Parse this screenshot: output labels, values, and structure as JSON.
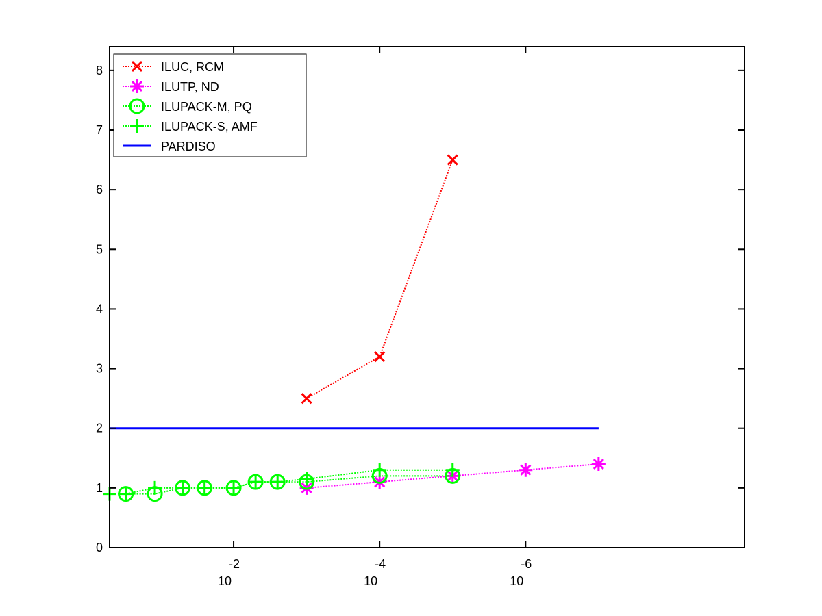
{
  "chart_data": {
    "type": "line",
    "title": "",
    "xlabel": "",
    "ylabel": "",
    "x_scale": "log",
    "x_reversed": true,
    "xlim": [
      0.5,
      1e-09
    ],
    "ylim": [
      0,
      8.4
    ],
    "y_ticks": [
      0,
      1,
      2,
      3,
      4,
      5,
      6,
      7,
      8
    ],
    "x_ticks": [
      {
        "base": "10",
        "exp": "-2",
        "value": 0.01
      },
      {
        "base": "10",
        "exp": "-4",
        "value": 0.0001
      },
      {
        "base": "10",
        "exp": "-6",
        "value": 1e-06
      }
    ],
    "grid": false,
    "legend_position": "top-left",
    "series": [
      {
        "name": "ILUC, RCM",
        "color": "#ff0000",
        "marker": "x",
        "line": "dotted",
        "x": [
          0.001,
          0.0001,
          1e-05
        ],
        "y": [
          2.5,
          3.2,
          6.5
        ]
      },
      {
        "name": "ILUTP,  ND",
        "color": "#ff00ff",
        "marker": "asterisk",
        "line": "dotted",
        "x": [
          0.001,
          0.0001,
          1e-05,
          1e-06,
          1e-07
        ],
        "y": [
          1.0,
          1.1,
          1.2,
          1.3,
          1.4
        ]
      },
      {
        "name": "ILUPACK-M, PQ",
        "color": "#00ff00",
        "marker": "circle",
        "line": "dotted",
        "x": [
          0.3,
          0.12,
          0.05,
          0.025,
          0.01,
          0.005,
          0.0025,
          0.001,
          0.0001,
          1e-05
        ],
        "y": [
          0.9,
          0.9,
          1.0,
          1.0,
          1.0,
          1.1,
          1.1,
          1.1,
          1.2,
          1.2
        ]
      },
      {
        "name": "ILUPACK-S, AMF",
        "color": "#00ff00",
        "marker": "plus",
        "line": "dotted",
        "x": [
          0.5,
          0.3,
          0.12,
          0.05,
          0.025,
          0.01,
          0.005,
          0.0025,
          0.001,
          0.0001,
          1e-05
        ],
        "y": [
          0.9,
          0.9,
          1.0,
          1.0,
          1.0,
          1.0,
          1.1,
          1.1,
          1.15,
          1.3,
          1.3
        ]
      },
      {
        "name": "PARDISO",
        "color": "#0000ff",
        "marker": "none",
        "line": "solid",
        "x": [
          0.5,
          1e-07
        ],
        "y": [
          2.0,
          2.0
        ]
      }
    ]
  }
}
